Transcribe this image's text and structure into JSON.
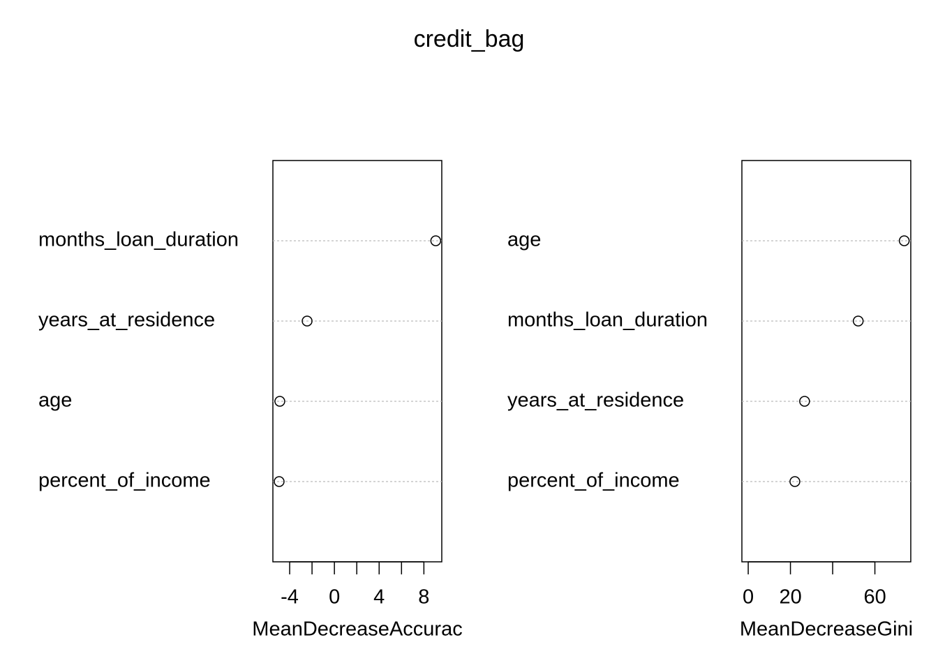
{
  "title": "credit_bag",
  "chart_data": [
    {
      "type": "dot",
      "xlabel": "MeanDecreaseAccurac",
      "categories": [
        "months_loan_duration",
        "years_at_residence",
        "age",
        "percent_of_income"
      ],
      "values": [
        9.06,
        -2.44,
        -4.88,
        -4.94
      ],
      "xlim": [
        -5.5,
        9.6
      ],
      "xticks": [
        -4,
        -2,
        0,
        2,
        4,
        6,
        8
      ],
      "grid": true,
      "color": "#000000"
    },
    {
      "type": "dot",
      "xlabel": "MeanDecreaseGini",
      "categories": [
        "age",
        "months_loan_duration",
        "years_at_residence",
        "percent_of_income"
      ],
      "values": [
        73.9,
        52.1,
        26.7,
        22.1
      ],
      "xlim": [
        -3,
        77
      ],
      "xticks": [
        0,
        20,
        40,
        60
      ],
      "grid": true,
      "color": "#000000"
    }
  ]
}
